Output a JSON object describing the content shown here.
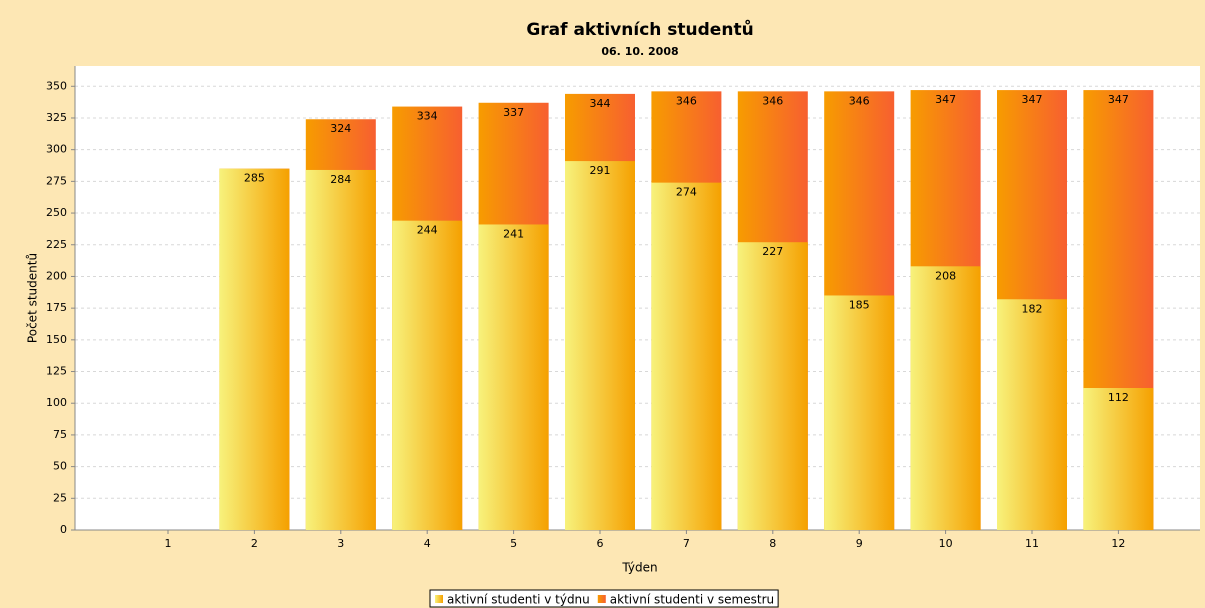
{
  "chart_data": {
    "type": "bar",
    "title": "Graf aktivních studentů",
    "subtitle": "06. 10. 2008",
    "x_label": "Týden",
    "y_label": "Počet studentů",
    "categories": [
      "1",
      "2",
      "3",
      "4",
      "5",
      "6",
      "7",
      "8",
      "9",
      "10",
      "11",
      "12"
    ],
    "series": [
      {
        "name": "aktivní studenti v semestru",
        "color": "#f76a2c",
        "values": [
          null,
          285,
          324,
          334,
          337,
          344,
          346,
          346,
          346,
          347,
          347,
          347
        ]
      },
      {
        "name": "aktivní studenti v týdnu",
        "color": "#f5c400",
        "values": [
          null,
          285,
          284,
          244,
          241,
          291,
          274,
          227,
          185,
          208,
          182,
          112
        ]
      }
    ],
    "ylim": [
      0,
      366
    ],
    "yticks": [
      0,
      25,
      50,
      75,
      100,
      125,
      150,
      175,
      200,
      225,
      250,
      275,
      300,
      325,
      350
    ],
    "grid": true,
    "legend": "bottom"
  }
}
